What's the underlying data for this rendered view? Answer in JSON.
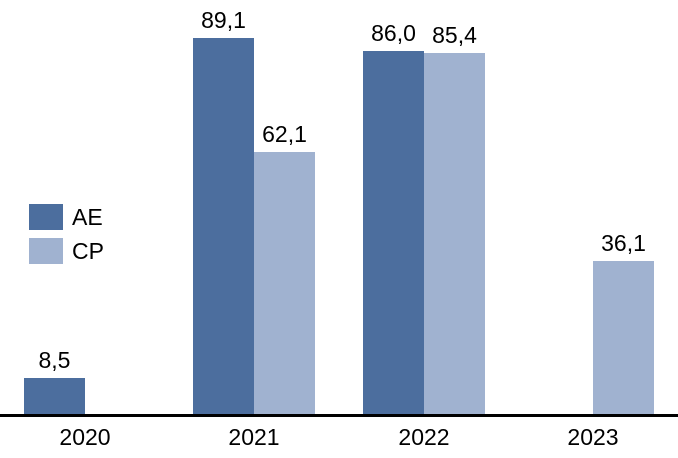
{
  "chart_data": {
    "type": "bar",
    "title": "",
    "xlabel": "",
    "ylabel": "",
    "categories": [
      "2020",
      "2021",
      "2022",
      "2023"
    ],
    "series": [
      {
        "name": "AE",
        "color": "#4C6E9E",
        "values": [
          8.5,
          89.1,
          86.0,
          null
        ],
        "labels": [
          "8,5",
          "89,1",
          "86,0",
          null
        ]
      },
      {
        "name": "CP",
        "color": "#A0B2D0",
        "values": [
          null,
          62.1,
          85.4,
          36.1
        ],
        "labels": [
          null,
          "62,1",
          "85,4",
          "36,1"
        ]
      }
    ],
    "ylim": [
      0,
      98
    ],
    "grid": false,
    "y_axis_visible": false,
    "legend_position": "middle-left",
    "decimal_separator": ",",
    "axis_color": "#000000",
    "background_color": "#FFFFFF"
  }
}
